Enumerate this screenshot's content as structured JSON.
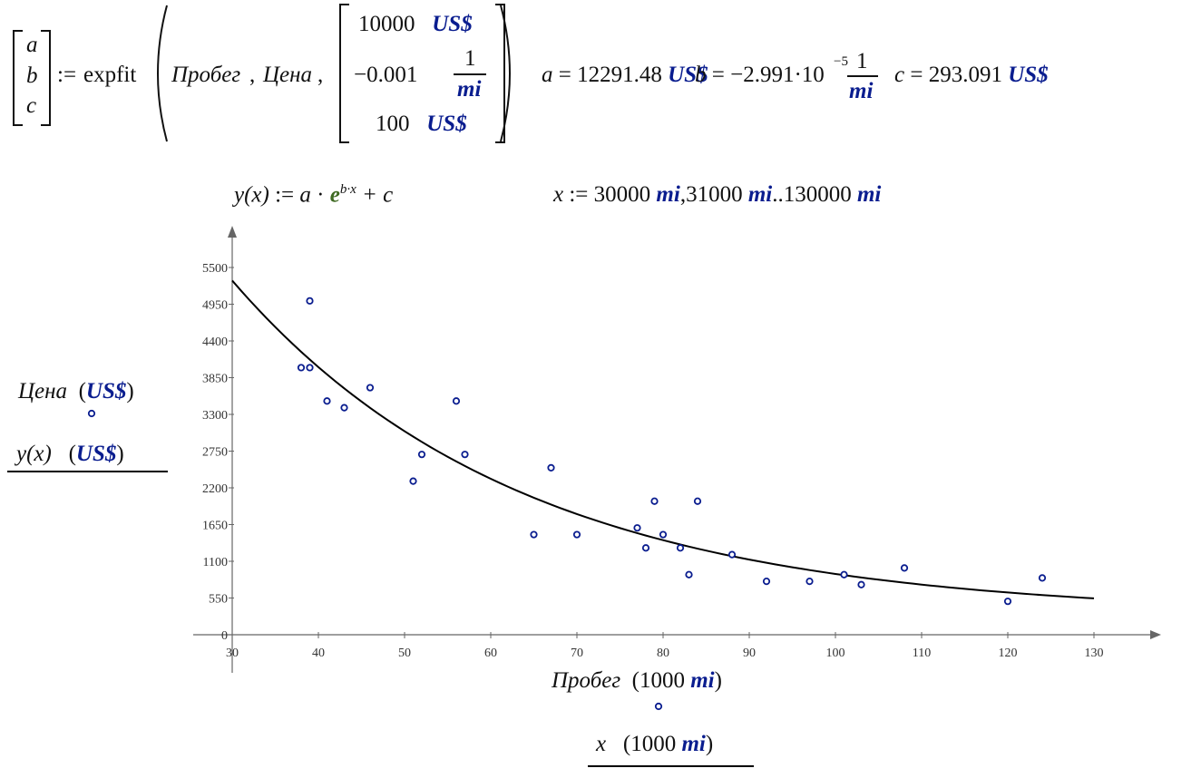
{
  "formula": {
    "params": [
      "a",
      "b",
      "c"
    ],
    "assign": ":=",
    "func": "expfit",
    "arg1": "Пробег",
    "arg2": "Цена",
    "guess": [
      {
        "value": "10000",
        "unit": "US$"
      },
      {
        "value": "−0.001",
        "num": "1",
        "unit": "mi"
      },
      {
        "value": "100",
        "unit": "US$"
      }
    ],
    "results": {
      "a": {
        "label": "a",
        "value": "12291.48",
        "unit": "US$"
      },
      "b": {
        "label": "b",
        "mantissa": "−2.991",
        "times": "·10",
        "exp": "−5",
        "num": "1",
        "unit": "mi"
      },
      "c": {
        "label": "c",
        "value": "293.091",
        "unit": "US$"
      }
    }
  },
  "model": {
    "lhs": "y(x)",
    "assign": ":=",
    "a": "a",
    "dot": "·",
    "e": "e",
    "exp": "b·x",
    "plus": "+ c"
  },
  "range": {
    "var": "x",
    "assign": ":=",
    "v1": "30000",
    "v2": "31000",
    "v3": "130000",
    "unit": "mi",
    "sep": ",",
    "dots": ".."
  },
  "chart_data": {
    "type": "scatter",
    "title": "",
    "ylabels": [
      {
        "name": "Цена",
        "unit": "US$"
      },
      {
        "name": "y(x)",
        "unit": "US$"
      }
    ],
    "xlabels": [
      {
        "name": "Пробег",
        "scale": "1000",
        "unit": "mi"
      },
      {
        "name": "x",
        "scale": "1000",
        "unit": "mi"
      }
    ],
    "xlim": [
      30,
      130
    ],
    "ylim": [
      0,
      5500
    ],
    "xticks": [
      30,
      40,
      50,
      60,
      70,
      80,
      90,
      100,
      110,
      120,
      130
    ],
    "yticks": [
      0,
      550,
      1100,
      1650,
      2200,
      2750,
      3300,
      3850,
      4400,
      4950,
      5500
    ],
    "series": [
      {
        "name": "Цена",
        "kind": "scatter",
        "color": "#0a1d8f",
        "points": [
          [
            38,
            4000
          ],
          [
            39,
            5000
          ],
          [
            39,
            4000
          ],
          [
            41,
            3500
          ],
          [
            43,
            3400
          ],
          [
            46,
            3700
          ],
          [
            51,
            2300
          ],
          [
            52,
            2700
          ],
          [
            56,
            3500
          ],
          [
            57,
            2700
          ],
          [
            65,
            1500
          ],
          [
            67,
            2500
          ],
          [
            70,
            1500
          ],
          [
            77,
            1600
          ],
          [
            78,
            1300
          ],
          [
            79,
            2000
          ],
          [
            80,
            1500
          ],
          [
            82,
            1300
          ],
          [
            83,
            900
          ],
          [
            84,
            2000
          ],
          [
            88,
            1200
          ],
          [
            92,
            800
          ],
          [
            97,
            800
          ],
          [
            101,
            900
          ],
          [
            103,
            750
          ],
          [
            108,
            1000
          ],
          [
            120,
            500
          ],
          [
            124,
            850
          ]
        ]
      },
      {
        "name": "y(x)",
        "kind": "line",
        "color": "#000000",
        "a": 12291.48,
        "b": -0.02991,
        "c": 293.091
      }
    ]
  }
}
